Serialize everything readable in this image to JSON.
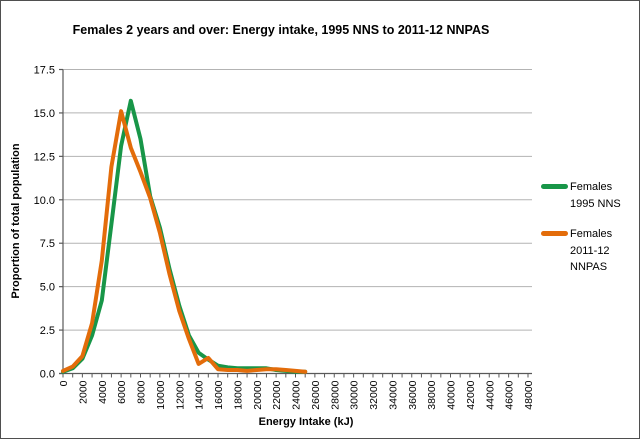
{
  "title": "Females 2 years and over: Energy intake, 1995 NNS to 2011-12 NNPAS",
  "colors": {
    "series_green": "#189648",
    "series_orange": "#E36C0A",
    "gridline": "#B3B3B3",
    "axis_line": "#595959",
    "text": "#000000",
    "frame_border": "#4f4f4f"
  },
  "legend": {
    "position": "right",
    "items": [
      {
        "label_lines": [
          "Females",
          "1995 NNS"
        ],
        "color": "#189648"
      },
      {
        "label_lines": [
          "Females",
          "2011-12",
          "NNPAS"
        ],
        "color": "#E36C0A"
      }
    ]
  },
  "chart_data": {
    "type": "line",
    "title": "Females 2 years and over: Energy intake, 1995 NNS to 2011-12 NNPAS",
    "xlabel": "Energy Intake (kJ)",
    "ylabel": "Proportion of total population",
    "xlim": [
      0,
      48000
    ],
    "ylim": [
      0,
      17.5
    ],
    "x_major_tick_step": 2000,
    "x_minor_tick_step": 1000,
    "y_tick_step": 2.5,
    "y_tick_labels": [
      "0.0",
      "2.5",
      "5.0",
      "7.5",
      "10.0",
      "12.5",
      "15.0",
      "17.5"
    ],
    "x_tick_labels": [
      "0",
      "2000",
      "4000",
      "6000",
      "8000",
      "10000",
      "12000",
      "14000",
      "16000",
      "18000",
      "20000",
      "22000",
      "24000",
      "26000",
      "28000",
      "30000",
      "32000",
      "34000",
      "36000",
      "38000",
      "40000",
      "42000",
      "44000",
      "46000",
      "48000"
    ],
    "grid": true,
    "legend_position": "right",
    "x": [
      0,
      1000,
      2000,
      3000,
      4000,
      5000,
      6000,
      7000,
      8000,
      9000,
      10000,
      11000,
      12000,
      13000,
      14000,
      15000,
      16000,
      17000,
      18000,
      19000,
      20000,
      21000,
      22000,
      23000,
      24000,
      25000
    ],
    "series": [
      {
        "name": "Females 1995 NNS",
        "color": "#189648",
        "values": [
          0.1,
          0.3,
          0.85,
          2.2,
          4.2,
          8.6,
          13.1,
          15.7,
          13.5,
          10.2,
          8.4,
          6.0,
          3.9,
          2.2,
          1.2,
          0.8,
          0.45,
          0.35,
          0.3,
          0.3,
          0.3,
          0.3,
          0.2,
          0.15,
          0.1,
          0.1
        ]
      },
      {
        "name": "Females 2011-12 NNPAS",
        "color": "#E36C0A",
        "values": [
          0.15,
          0.4,
          1.0,
          2.9,
          6.5,
          11.9,
          15.1,
          13.0,
          11.6,
          10.1,
          8.1,
          5.7,
          3.6,
          2.0,
          0.55,
          0.9,
          0.25,
          0.2,
          0.2,
          0.15,
          0.2,
          0.25,
          0.25,
          0.2,
          0.15,
          0.1
        ]
      }
    ]
  }
}
